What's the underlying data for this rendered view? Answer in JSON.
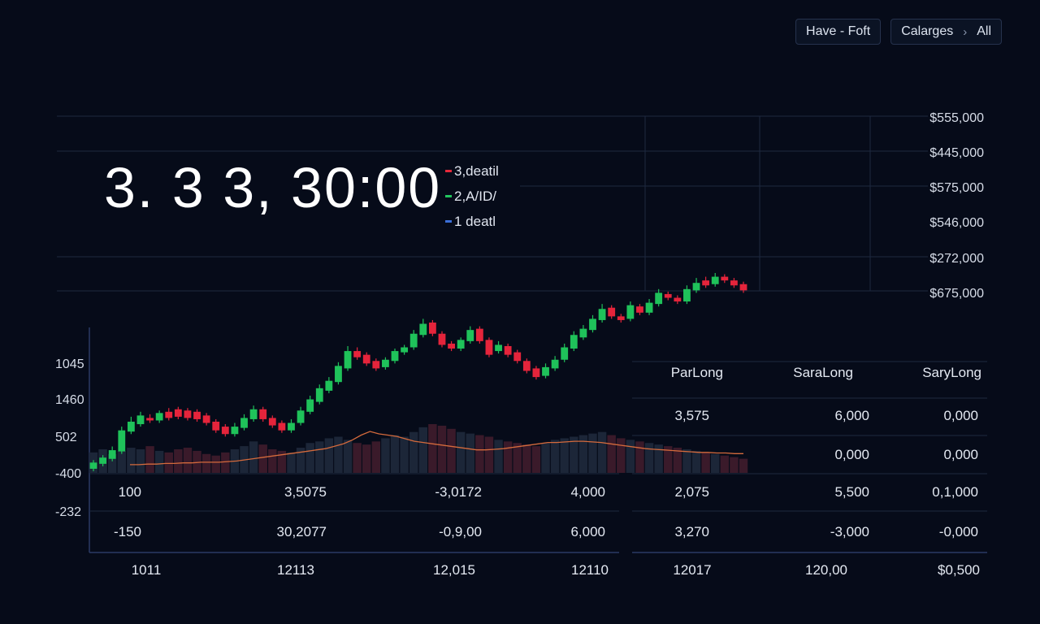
{
  "header": {
    "toolbar": {
      "button1_label": "Have - Foft",
      "button2_label": "Calarges",
      "button2_sep": "›",
      "button2_value": "All"
    }
  },
  "headline": {
    "value": "3. 3 3, 30:00"
  },
  "legend": {
    "items": [
      {
        "label": "3,deatil",
        "color": "#e5283a"
      },
      {
        "label": "2,A/ID/",
        "color": "#22c55e"
      },
      {
        "label": "1 deatl",
        "color": "#3b6fd8"
      }
    ]
  },
  "colors": {
    "up": "#1fc25a",
    "down": "#e5243b",
    "volume_up": "#1c2638",
    "volume_down": "#3a1a2a",
    "ma_line": "#d46a3c",
    "grid": "#1d2840",
    "axis": "#2a3a66"
  },
  "chart_data": {
    "type": "candlestick",
    "y_axis_right": [
      "$555,000",
      "$445,000",
      "$575,000",
      "$546,000",
      "$272,000",
      "$675,000"
    ],
    "y_axis_left": [
      "1045",
      "1460",
      "502",
      "-400",
      "-232"
    ],
    "x_axis": [
      "1011",
      "12113",
      "12,015",
      "12110",
      "12017",
      "120,00",
      "$0,500"
    ],
    "candles": [
      {
        "o": 100,
        "c": 110,
        "h": 114,
        "l": 96
      },
      {
        "o": 108,
        "c": 118,
        "h": 122,
        "l": 104
      },
      {
        "o": 116,
        "c": 130,
        "h": 136,
        "l": 112
      },
      {
        "o": 128,
        "c": 162,
        "h": 168,
        "l": 124
      },
      {
        "o": 160,
        "c": 176,
        "h": 184,
        "l": 156
      },
      {
        "o": 172,
        "c": 186,
        "h": 192,
        "l": 168
      },
      {
        "o": 182,
        "c": 178,
        "h": 188,
        "l": 174
      },
      {
        "o": 178,
        "c": 190,
        "h": 194,
        "l": 174
      },
      {
        "o": 192,
        "c": 182,
        "h": 198,
        "l": 178
      },
      {
        "o": 196,
        "c": 184,
        "h": 200,
        "l": 180
      },
      {
        "o": 194,
        "c": 182,
        "h": 198,
        "l": 178
      },
      {
        "o": 192,
        "c": 180,
        "h": 196,
        "l": 176
      },
      {
        "o": 186,
        "c": 174,
        "h": 190,
        "l": 170
      },
      {
        "o": 176,
        "c": 162,
        "h": 180,
        "l": 158
      },
      {
        "o": 168,
        "c": 156,
        "h": 172,
        "l": 152
      },
      {
        "o": 156,
        "c": 168,
        "h": 174,
        "l": 152
      },
      {
        "o": 166,
        "c": 182,
        "h": 188,
        "l": 162
      },
      {
        "o": 180,
        "c": 196,
        "h": 202,
        "l": 176
      },
      {
        "o": 196,
        "c": 180,
        "h": 200,
        "l": 176
      },
      {
        "o": 182,
        "c": 170,
        "h": 186,
        "l": 166
      },
      {
        "o": 174,
        "c": 162,
        "h": 178,
        "l": 158
      },
      {
        "o": 162,
        "c": 174,
        "h": 180,
        "l": 158
      },
      {
        "o": 174,
        "c": 194,
        "h": 200,
        "l": 170
      },
      {
        "o": 192,
        "c": 212,
        "h": 218,
        "l": 188
      },
      {
        "o": 208,
        "c": 230,
        "h": 236,
        "l": 204
      },
      {
        "o": 226,
        "c": 242,
        "h": 248,
        "l": 222
      },
      {
        "o": 240,
        "c": 266,
        "h": 272,
        "l": 236
      },
      {
        "o": 262,
        "c": 290,
        "h": 298,
        "l": 258
      },
      {
        "o": 290,
        "c": 280,
        "h": 296,
        "l": 276
      },
      {
        "o": 284,
        "c": 270,
        "h": 288,
        "l": 266
      },
      {
        "o": 274,
        "c": 262,
        "h": 278,
        "l": 258
      },
      {
        "o": 264,
        "c": 276,
        "h": 280,
        "l": 260
      },
      {
        "o": 274,
        "c": 290,
        "h": 294,
        "l": 270
      },
      {
        "o": 288,
        "c": 296,
        "h": 300,
        "l": 284
      },
      {
        "o": 296,
        "c": 318,
        "h": 324,
        "l": 292
      },
      {
        "o": 316,
        "c": 334,
        "h": 342,
        "l": 312
      },
      {
        "o": 336,
        "c": 318,
        "h": 340,
        "l": 314
      },
      {
        "o": 318,
        "c": 300,
        "h": 322,
        "l": 296
      },
      {
        "o": 302,
        "c": 294,
        "h": 306,
        "l": 290
      },
      {
        "o": 294,
        "c": 308,
        "h": 312,
        "l": 290
      },
      {
        "o": 306,
        "c": 324,
        "h": 330,
        "l": 302
      },
      {
        "o": 326,
        "c": 306,
        "h": 330,
        "l": 302
      },
      {
        "o": 308,
        "c": 284,
        "h": 312,
        "l": 280
      },
      {
        "o": 290,
        "c": 300,
        "h": 306,
        "l": 286
      },
      {
        "o": 298,
        "c": 284,
        "h": 302,
        "l": 280
      },
      {
        "o": 288,
        "c": 274,
        "h": 292,
        "l": 270
      },
      {
        "o": 274,
        "c": 258,
        "h": 278,
        "l": 254
      },
      {
        "o": 262,
        "c": 248,
        "h": 266,
        "l": 244
      },
      {
        "o": 250,
        "c": 264,
        "h": 270,
        "l": 246
      },
      {
        "o": 262,
        "c": 276,
        "h": 282,
        "l": 258
      },
      {
        "o": 276,
        "c": 296,
        "h": 302,
        "l": 272
      },
      {
        "o": 294,
        "c": 316,
        "h": 322,
        "l": 290
      },
      {
        "o": 312,
        "c": 326,
        "h": 332,
        "l": 308
      },
      {
        "o": 324,
        "c": 342,
        "h": 348,
        "l": 320
      },
      {
        "o": 340,
        "c": 358,
        "h": 366,
        "l": 336
      },
      {
        "o": 360,
        "c": 346,
        "h": 364,
        "l": 342
      },
      {
        "o": 346,
        "c": 340,
        "h": 350,
        "l": 336
      },
      {
        "o": 342,
        "c": 364,
        "h": 370,
        "l": 338
      },
      {
        "o": 362,
        "c": 352,
        "h": 366,
        "l": 348
      },
      {
        "o": 352,
        "c": 368,
        "h": 374,
        "l": 348
      },
      {
        "o": 366,
        "c": 384,
        "h": 390,
        "l": 362
      },
      {
        "o": 382,
        "c": 376,
        "h": 386,
        "l": 372
      },
      {
        "o": 376,
        "c": 370,
        "h": 380,
        "l": 366
      },
      {
        "o": 370,
        "c": 390,
        "h": 396,
        "l": 366
      },
      {
        "o": 388,
        "c": 400,
        "h": 408,
        "l": 384
      },
      {
        "o": 404,
        "c": 396,
        "h": 410,
        "l": 392
      },
      {
        "o": 398,
        "c": 410,
        "h": 416,
        "l": 394
      },
      {
        "o": 410,
        "c": 404,
        "h": 414,
        "l": 400
      },
      {
        "o": 404,
        "c": 396,
        "h": 408,
        "l": 392
      },
      {
        "o": 398,
        "c": 388,
        "h": 402,
        "l": 384
      }
    ],
    "volume": [
      26,
      30,
      24,
      28,
      32,
      30,
      34,
      28,
      26,
      30,
      32,
      28,
      24,
      22,
      26,
      30,
      34,
      40,
      36,
      30,
      28,
      26,
      32,
      38,
      40,
      44,
      46,
      42,
      38,
      36,
      40,
      44,
      48,
      46,
      52,
      58,
      62,
      60,
      56,
      52,
      50,
      48,
      46,
      42,
      40,
      38,
      36,
      34,
      38,
      42,
      44,
      46,
      48,
      50,
      52,
      48,
      44,
      42,
      40,
      38,
      36,
      34,
      32,
      30,
      28,
      26,
      24,
      22,
      20,
      18
    ],
    "ma_line": [
      8,
      8,
      9,
      9,
      10,
      10,
      11,
      11,
      12,
      12,
      12,
      13,
      14,
      16,
      18,
      20,
      22,
      24,
      26,
      28,
      30,
      32,
      34,
      38,
      42,
      48,
      56,
      62,
      58,
      56,
      54,
      50,
      46,
      44,
      42,
      40,
      38,
      36,
      34,
      32,
      32,
      33,
      34,
      36,
      38,
      40,
      42,
      44,
      44,
      45,
      46,
      46,
      45,
      44,
      42,
      40,
      38,
      36,
      34,
      33,
      32,
      31,
      30,
      29,
      28,
      28,
      27,
      27,
      26,
      26
    ],
    "table": {
      "headers": [
        "ParLong",
        "SaraLong",
        "SaryLong"
      ],
      "rows_right": [
        [
          "3,575",
          "6,000",
          "0,000"
        ],
        [
          "",
          "0,000",
          "0,000"
        ],
        [
          "2,075",
          "5,500",
          "0,1,000"
        ],
        [
          "3,270",
          "-3,000",
          "-0,000"
        ]
      ],
      "rows_left": [
        [
          "100",
          "3,5075",
          "-3,0172",
          "4,000"
        ],
        [
          "-150",
          "30,2077",
          "-0,9,00",
          "6,000"
        ]
      ]
    }
  }
}
